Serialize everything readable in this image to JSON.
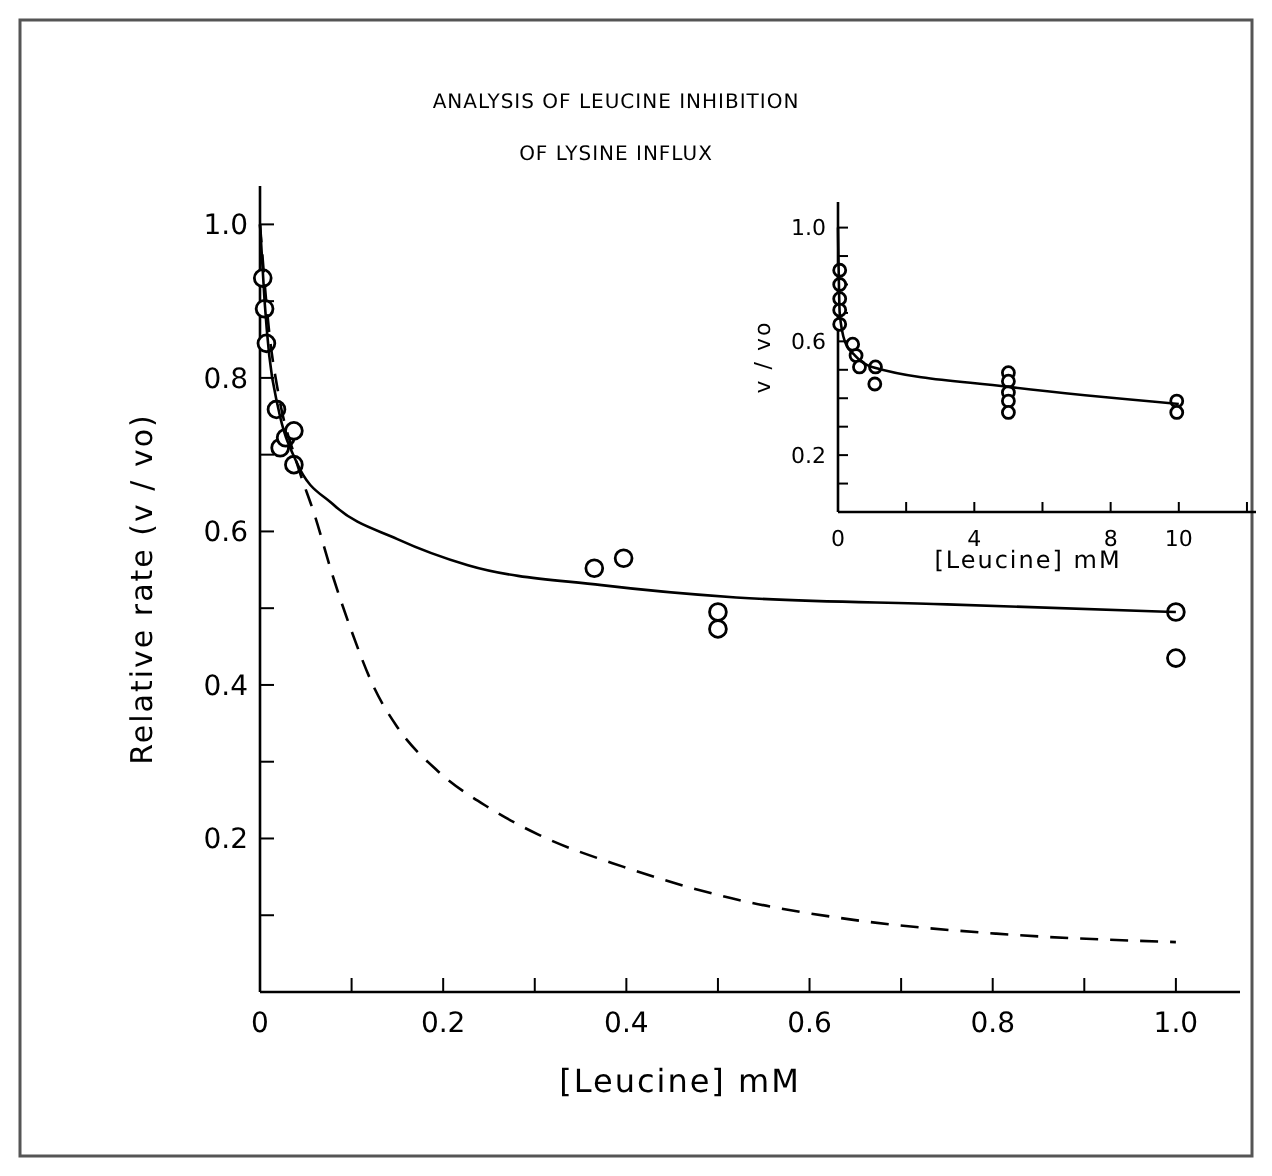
{
  "chart_data": [
    {
      "type": "scatter",
      "title": "ANALYSIS OF LEUCINE INHIBITION\nOF LYSINE INFLUX",
      "xlabel": "[Leucine] mM",
      "ylabel": "Relative rate (v / vo)",
      "xlim": [
        0,
        1.07
      ],
      "ylim": [
        0,
        1.05
      ],
      "xticks": [
        0,
        {
          "value": 0.1,
          "label": null
        },
        0.2,
        {
          "value": 0.3,
          "label": null
        },
        0.4,
        {
          "value": 0.5,
          "label": null
        },
        0.6,
        {
          "value": 0.7,
          "label": null
        },
        0.8,
        {
          "value": 0.9,
          "label": null
        },
        {
          "value": 1.0,
          "label": "1.0"
        }
      ],
      "yticks": [
        {
          "value": 0.1,
          "label": null
        },
        0.2,
        {
          "value": 0.3,
          "label": null
        },
        0.4,
        {
          "value": 0.5,
          "label": null
        },
        0.6,
        {
          "value": 0.7,
          "label": null
        },
        0.8,
        {
          "value": 0.9,
          "label": null
        },
        {
          "value": 1.0,
          "label": "1.0"
        }
      ],
      "grid": false,
      "marker": "circle",
      "series": [
        {
          "type": "scatter",
          "color": "#000000",
          "x": [
            0.003,
            0.005,
            0.007,
            0.018,
            0.022,
            0.028,
            0.037,
            0.037,
            0.365,
            0.397,
            0.5,
            0.5,
            1.0,
            1.0
          ],
          "values": [
            0.93,
            0.89,
            0.845,
            0.759,
            0.709,
            0.722,
            0.731,
            0.687,
            0.552,
            0.565,
            0.495,
            0.473,
            0.495,
            0.435
          ]
        },
        {
          "type": "line",
          "color": "#000000",
          "line_style": "solid",
          "marker": "none",
          "x": [
            0,
            0.005,
            0.01,
            0.02,
            0.04,
            0.08,
            0.15,
            0.227,
            0.373,
            0.52,
            0.75,
            1.0
          ],
          "values": [
            1.0,
            0.9,
            0.83,
            0.76,
            0.69,
            0.635,
            0.59,
            0.556,
            0.53,
            0.514,
            0.505,
            0.495
          ]
        },
        {
          "type": "line",
          "color": "#000000",
          "line_style": "dashed",
          "marker": "none",
          "x": [
            0,
            0.01,
            0.02,
            0.04,
            0.06,
            0.08,
            0.1,
            0.124,
            0.15,
            0.194,
            0.25,
            0.304,
            0.397,
            0.515,
            0.648,
            0.804,
            1.0
          ],
          "values": [
            1.0,
            0.86,
            0.78,
            0.69,
            0.62,
            0.54,
            0.47,
            0.398,
            0.345,
            0.288,
            0.24,
            0.205,
            0.163,
            0.122,
            0.094,
            0.076,
            0.065
          ]
        }
      ]
    },
    {
      "type": "scatter",
      "xlabel": "[Leucine] mM",
      "ylabel": "v / vo",
      "xlim": [
        0,
        12.5
      ],
      "ylim": [
        0,
        1.09
      ],
      "xticks": [
        0,
        {
          "value": 2,
          "label": null
        },
        4,
        {
          "value": 6,
          "label": null
        },
        8,
        10,
        {
          "value": 12,
          "label": null
        }
      ],
      "yticks": [
        {
          "value": 0.1,
          "label": null
        },
        0.2,
        {
          "value": 0.3,
          "label": null
        },
        {
          "value": 0.4,
          "label": null
        },
        {
          "value": 0.5,
          "label": null
        },
        0.6,
        {
          "value": 0.7,
          "label": null
        },
        {
          "value": 0.8,
          "label": null
        },
        {
          "value": 0.9,
          "label": null
        },
        {
          "value": 1.0,
          "label": "1.0"
        }
      ],
      "grid": false,
      "marker": "circle",
      "series": [
        {
          "type": "scatter",
          "color": "#000000",
          "x": [
            0.05,
            0.05,
            0.05,
            0.05,
            0.05,
            0.43,
            0.53,
            0.63,
            1.1,
            1.08,
            5,
            5,
            5,
            5,
            5,
            9.94,
            9.94
          ],
          "values": [
            0.85,
            0.8,
            0.75,
            0.71,
            0.66,
            0.59,
            0.55,
            0.51,
            0.51,
            0.45,
            0.49,
            0.46,
            0.42,
            0.39,
            0.35,
            0.39,
            0.35
          ]
        },
        {
          "type": "line",
          "color": "#000000",
          "line_style": "solid",
          "marker": "none",
          "x": [
            0,
            0.05,
            0.2,
            0.5,
            1,
            5,
            10
          ],
          "values": [
            1.0,
            0.7,
            0.6,
            0.55,
            0.51,
            0.44,
            0.38
          ]
        }
      ]
    }
  ]
}
